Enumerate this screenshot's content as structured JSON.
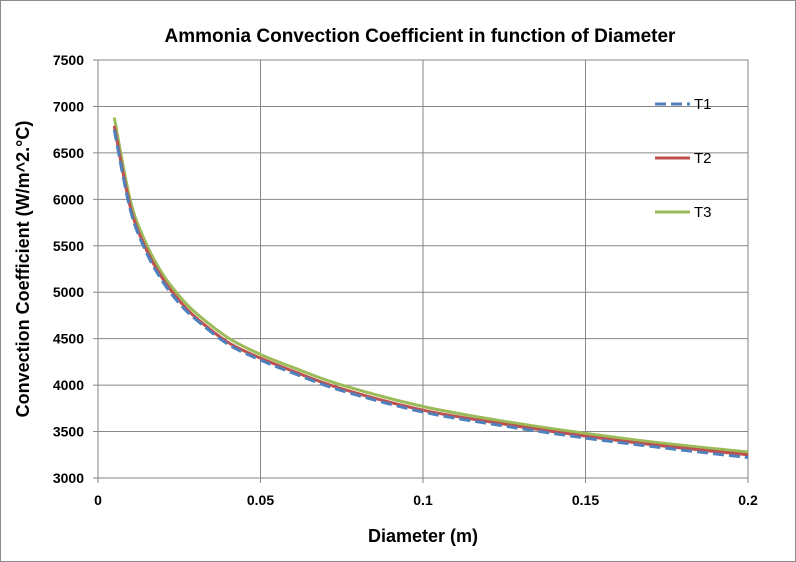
{
  "chart_data": {
    "type": "line",
    "title": "Ammonia Convection Coefficient in function of Diameter",
    "xlabel": "Diameter (m)",
    "ylabel": "Convection Coefficient (W/m^2.°C)",
    "xlim": [
      0,
      0.2
    ],
    "ylim": [
      3000,
      7500
    ],
    "x_ticks": [
      0,
      0.05,
      0.1,
      0.15,
      0.2
    ],
    "x_tick_labels": [
      "0",
      "0.05",
      "0.1",
      "0.15",
      "0.2"
    ],
    "y_ticks": [
      3000,
      3500,
      4000,
      4500,
      5000,
      5500,
      6000,
      6500,
      7000,
      7500
    ],
    "y_tick_labels": [
      "3000",
      "3500",
      "4000",
      "4500",
      "5000",
      "5500",
      "6000",
      "6500",
      "7000",
      "7500"
    ],
    "grid": true,
    "legend_position": "right",
    "x": [
      0.005,
      0.01,
      0.015,
      0.02,
      0.025,
      0.03,
      0.04,
      0.05,
      0.06,
      0.075,
      0.1,
      0.125,
      0.15,
      0.175,
      0.2
    ],
    "series": [
      {
        "name": "T1",
        "color": "#4f81bd",
        "dash": "dashed",
        "values": [
          6750,
          5880,
          5420,
          5110,
          4880,
          4710,
          4440,
          4270,
          4130,
          3940,
          3710,
          3560,
          3430,
          3320,
          3220
        ]
      },
      {
        "name": "T2",
        "color": "#c0504d",
        "dash": "solid",
        "values": [
          6790,
          5910,
          5450,
          5140,
          4910,
          4730,
          4460,
          4290,
          4150,
          3960,
          3730,
          3580,
          3450,
          3340,
          3250
        ]
      },
      {
        "name": "T3",
        "color": "#9bbb59",
        "dash": "solid",
        "values": [
          6880,
          5980,
          5510,
          5190,
          4960,
          4780,
          4510,
          4330,
          4190,
          4000,
          3770,
          3610,
          3480,
          3370,
          3280
        ]
      }
    ]
  }
}
